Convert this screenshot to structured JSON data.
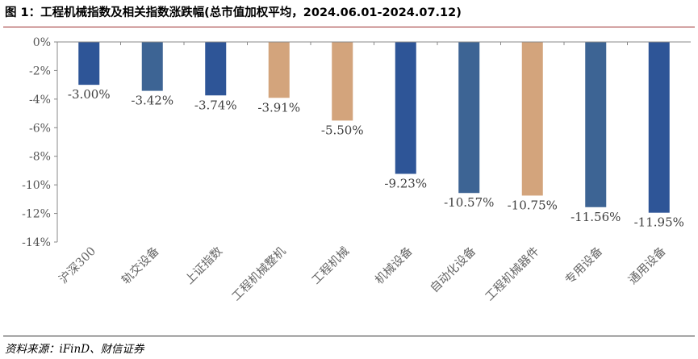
{
  "title": "图 1：工程机械指数及相关指数涨跌幅(总市值加权平均，2024.06.01-2024.07.12)",
  "source": "资料来源：iFinD、财信证券",
  "colors": {
    "blue": "#2e5597",
    "steel": "#3d6494",
    "tan": "#d3a47c",
    "axis": "#888888"
  },
  "chart_data": {
    "type": "bar",
    "categories": [
      "沪深300",
      "轨交设备",
      "上证指数",
      "工程机械整机",
      "工程机械",
      "机械设备",
      "自动化设备",
      "工程机械器件",
      "专用设备",
      "通用设备"
    ],
    "values": [
      -3.0,
      -3.42,
      -3.74,
      -3.91,
      -5.5,
      -9.23,
      -10.57,
      -10.75,
      -11.56,
      -11.95
    ],
    "data_labels": [
      "-3.00%",
      "-3.42%",
      "-3.74%",
      "-3.91%",
      "-5.50%",
      "-9.23%",
      "-10.57%",
      "-10.75%",
      "-11.56%",
      "-11.95%"
    ],
    "bar_colors": [
      "blue",
      "steel",
      "blue",
      "tan",
      "tan",
      "blue",
      "steel",
      "tan",
      "steel",
      "blue"
    ],
    "yticks": [
      0,
      -2,
      -4,
      -6,
      -8,
      -10,
      -12,
      -14
    ],
    "ytick_labels": [
      "0%",
      "-2%",
      "-4%",
      "-6%",
      "-8%",
      "-10%",
      "-12%",
      "-14%"
    ],
    "ylim": [
      -14,
      0
    ],
    "grid": false,
    "legend": "none"
  }
}
